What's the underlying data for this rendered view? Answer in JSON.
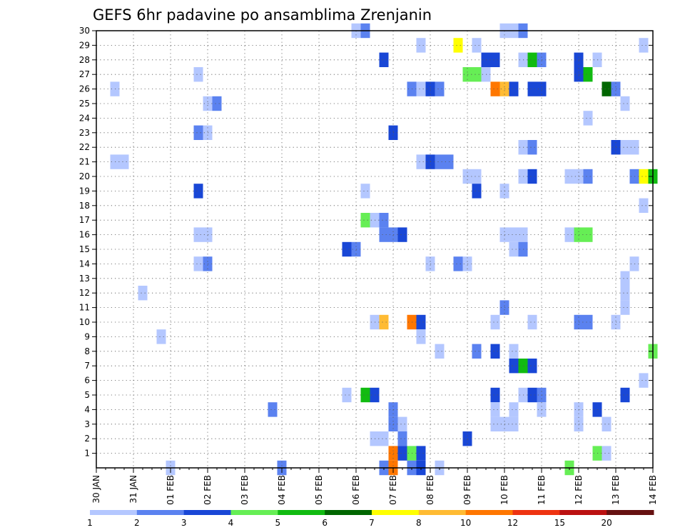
{
  "chart_data": {
    "type": "heatmap",
    "title": "GEFS 6hr padavine po ansamblima Zrenjanin",
    "xlabel": "",
    "ylabel": "",
    "x_tick_labels": [
      "30 JAN",
      "31 JAN",
      "01 FEB",
      "02 FEB",
      "03 FEB",
      "04 FEB",
      "05 FEB",
      "06 FEB",
      "07 FEB",
      "08 FEB",
      "09 FEB",
      "10 FEB",
      "11 FEB",
      "12 FEB",
      "13 FEB",
      "14 FEB"
    ],
    "y_tick_labels": [
      "1",
      "2",
      "3",
      "4",
      "5",
      "6",
      "7",
      "8",
      "9",
      "10",
      "11",
      "12",
      "13",
      "14",
      "15",
      "16",
      "17",
      "18",
      "19",
      "20",
      "21",
      "22",
      "23",
      "24",
      "25",
      "26",
      "27",
      "28",
      "29",
      "30"
    ],
    "x_range_6hr_steps": [
      0,
      60
    ],
    "y_range_members": [
      0,
      30
    ],
    "legend": {
      "thresholds": [
        "1",
        "2",
        "3",
        "4",
        "5",
        "6",
        "7",
        "8",
        "10",
        "12",
        "15",
        "20"
      ],
      "colors": [
        "#b4c7ff",
        "#5b82f0",
        "#1947d6",
        "#66ee55",
        "#11bb11",
        "#006600",
        "#ffff00",
        "#ffbb33",
        "#ff7700",
        "#ee3311",
        "#bb1111",
        "#661111"
      ]
    },
    "cells_format": "[time_step_6h, ensemble_member, color_class(1-12)]",
    "cells": [
      [
        28,
        30,
        1
      ],
      [
        29,
        30,
        2
      ],
      [
        44,
        30,
        1
      ],
      [
        45,
        30,
        1
      ],
      [
        46,
        30,
        2
      ],
      [
        35,
        29,
        1
      ],
      [
        39,
        29,
        7
      ],
      [
        41,
        29,
        1
      ],
      [
        59,
        29,
        1
      ],
      [
        31,
        28,
        3
      ],
      [
        42,
        28,
        3
      ],
      [
        43,
        28,
        3
      ],
      [
        46,
        28,
        1
      ],
      [
        47,
        28,
        5
      ],
      [
        48,
        28,
        2
      ],
      [
        52,
        28,
        3
      ],
      [
        54,
        28,
        1
      ],
      [
        11,
        27,
        1
      ],
      [
        40,
        27,
        4
      ],
      [
        41,
        27,
        4
      ],
      [
        42,
        27,
        1
      ],
      [
        52,
        27,
        3
      ],
      [
        53,
        27,
        5
      ],
      [
        2,
        26,
        1
      ],
      [
        34,
        26,
        2
      ],
      [
        35,
        26,
        1
      ],
      [
        36,
        26,
        3
      ],
      [
        37,
        26,
        2
      ],
      [
        43,
        26,
        9
      ],
      [
        44,
        26,
        8
      ],
      [
        45,
        26,
        3
      ],
      [
        47,
        26,
        3
      ],
      [
        48,
        26,
        3
      ],
      [
        55,
        26,
        6
      ],
      [
        56,
        26,
        2
      ],
      [
        12,
        25,
        1
      ],
      [
        13,
        25,
        2
      ],
      [
        57,
        25,
        1
      ],
      [
        53,
        24,
        1
      ],
      [
        11,
        23,
        2
      ],
      [
        12,
        23,
        1
      ],
      [
        32,
        23,
        3
      ],
      [
        46,
        22,
        1
      ],
      [
        47,
        22,
        2
      ],
      [
        56,
        22,
        3
      ],
      [
        57,
        22,
        1
      ],
      [
        58,
        22,
        1
      ],
      [
        2,
        21,
        1
      ],
      [
        3,
        21,
        1
      ],
      [
        35,
        21,
        1
      ],
      [
        36,
        21,
        3
      ],
      [
        37,
        21,
        2
      ],
      [
        38,
        21,
        2
      ],
      [
        40,
        20,
        1
      ],
      [
        41,
        20,
        1
      ],
      [
        46,
        20,
        1
      ],
      [
        47,
        20,
        3
      ],
      [
        51,
        20,
        1
      ],
      [
        52,
        20,
        1
      ],
      [
        53,
        20,
        2
      ],
      [
        58,
        20,
        2
      ],
      [
        59,
        20,
        7
      ],
      [
        60,
        20,
        5
      ],
      [
        11,
        19,
        3
      ],
      [
        29,
        19,
        1
      ],
      [
        41,
        19,
        3
      ],
      [
        44,
        19,
        1
      ],
      [
        59,
        18,
        1
      ],
      [
        29,
        17,
        4
      ],
      [
        30,
        17,
        1
      ],
      [
        31,
        17,
        2
      ],
      [
        11,
        16,
        1
      ],
      [
        12,
        16,
        1
      ],
      [
        31,
        16,
        2
      ],
      [
        32,
        16,
        2
      ],
      [
        33,
        16,
        3
      ],
      [
        44,
        16,
        1
      ],
      [
        45,
        16,
        1
      ],
      [
        46,
        16,
        1
      ],
      [
        51,
        16,
        1
      ],
      [
        52,
        16,
        4
      ],
      [
        53,
        16,
        4
      ],
      [
        27,
        15,
        3
      ],
      [
        28,
        15,
        2
      ],
      [
        45,
        15,
        1
      ],
      [
        46,
        15,
        2
      ],
      [
        11,
        14,
        1
      ],
      [
        12,
        14,
        2
      ],
      [
        36,
        14,
        1
      ],
      [
        39,
        14,
        2
      ],
      [
        40,
        14,
        1
      ],
      [
        58,
        14,
        1
      ],
      [
        57,
        13,
        1
      ],
      [
        5,
        12,
        1
      ],
      [
        57,
        12,
        1
      ],
      [
        44,
        11,
        2
      ],
      [
        57,
        11,
        1
      ],
      [
        30,
        10,
        1
      ],
      [
        31,
        10,
        8
      ],
      [
        34,
        10,
        9
      ],
      [
        35,
        10,
        3
      ],
      [
        43,
        10,
        1
      ],
      [
        47,
        10,
        1
      ],
      [
        52,
        10,
        2
      ],
      [
        53,
        10,
        2
      ],
      [
        56,
        10,
        1
      ],
      [
        7,
        9,
        1
      ],
      [
        35,
        9,
        1
      ],
      [
        37,
        8,
        1
      ],
      [
        41,
        8,
        2
      ],
      [
        43,
        8,
        3
      ],
      [
        45,
        8,
        1
      ],
      [
        60,
        8,
        4
      ],
      [
        45,
        7,
        3
      ],
      [
        46,
        7,
        5
      ],
      [
        47,
        7,
        3
      ],
      [
        59,
        6,
        1
      ],
      [
        27,
        5,
        1
      ],
      [
        29,
        5,
        5
      ],
      [
        30,
        5,
        3
      ],
      [
        43,
        5,
        3
      ],
      [
        46,
        5,
        1
      ],
      [
        47,
        5,
        3
      ],
      [
        48,
        5,
        2
      ],
      [
        57,
        5,
        3
      ],
      [
        19,
        4,
        2
      ],
      [
        32,
        4,
        2
      ],
      [
        43,
        4,
        1
      ],
      [
        45,
        4,
        1
      ],
      [
        48,
        4,
        1
      ],
      [
        52,
        4,
        1
      ],
      [
        54,
        4,
        3
      ],
      [
        32,
        3,
        2
      ],
      [
        33,
        3,
        1
      ],
      [
        43,
        3,
        1
      ],
      [
        44,
        3,
        1
      ],
      [
        45,
        3,
        1
      ],
      [
        52,
        3,
        1
      ],
      [
        55,
        3,
        1
      ],
      [
        30,
        2,
        1
      ],
      [
        31,
        2,
        1
      ],
      [
        33,
        2,
        2
      ],
      [
        40,
        2,
        3
      ],
      [
        32,
        1,
        9
      ],
      [
        33,
        1,
        3
      ],
      [
        34,
        1,
        4
      ],
      [
        35,
        1,
        3
      ],
      [
        54,
        1,
        4
      ],
      [
        55,
        1,
        1
      ],
      [
        31,
        0,
        2
      ],
      [
        32,
        0,
        9
      ],
      [
        34,
        0,
        2
      ],
      [
        35,
        0,
        3
      ],
      [
        37,
        0,
        1
      ],
      [
        51,
        0,
        4
      ],
      [
        8,
        0,
        1
      ],
      [
        20,
        0,
        2
      ]
    ]
  }
}
